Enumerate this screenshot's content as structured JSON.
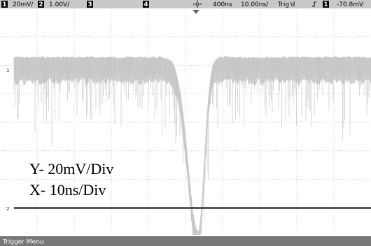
{
  "status_bar": {
    "ch1_label": "1",
    "ch1_scale": "20mV/",
    "ch2_label": "2",
    "ch2_scale": "1.00V/",
    "ch3_label": "3",
    "ch4_label": "4",
    "delay": "400ns",
    "timebase": "10.00ns/",
    "trigger_status": "Trig'd",
    "trigger_source": "1",
    "trigger_level": "-70.8mV"
  },
  "markers": {
    "ch1": "1",
    "ch2": "2"
  },
  "annotations": [
    "Y- 20mV/Div",
    "X- 10ns/Div"
  ],
  "softkey_bar": "Trigger Menu"
}
